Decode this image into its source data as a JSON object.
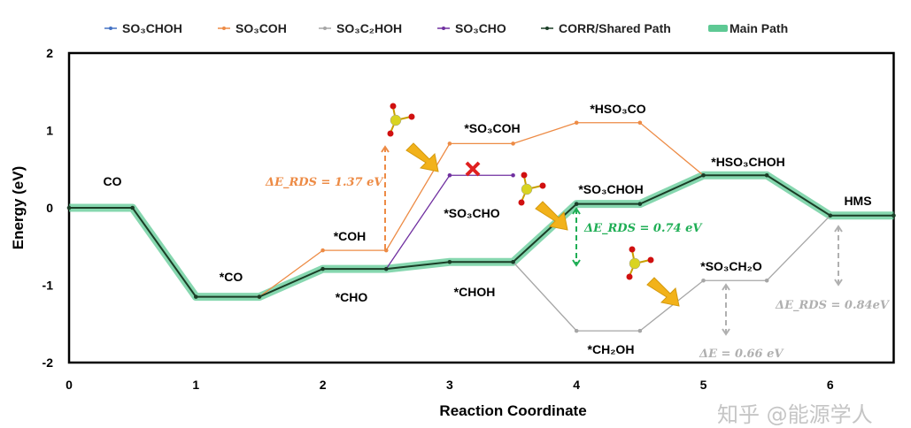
{
  "chart_data": {
    "type": "line",
    "title": "",
    "xlabel": "Reaction Coordinate",
    "ylabel": "Energy (eV)",
    "xlim": [
      0,
      6.5
    ],
    "ylim": [
      -2,
      2
    ],
    "x_ticks": [
      "0",
      "1",
      "2",
      "3",
      "4",
      "5",
      "6"
    ],
    "y_ticks": [
      "2",
      "1",
      "0",
      "-1",
      "-2"
    ],
    "grid": false,
    "legend_position": "top",
    "legend": [
      "SO₃CHOH",
      "SO₃COH",
      "SO₃C₂HOH",
      "SO₃CHO",
      "CORR/Shared Path",
      "Main Path"
    ],
    "series": [
      {
        "name": "Main Path",
        "color": "#5ec994",
        "points": [
          [
            0,
            0
          ],
          [
            0.5,
            0
          ],
          [
            1,
            -1.15
          ],
          [
            1.5,
            -1.15
          ],
          [
            2,
            -0.79
          ],
          [
            2.5,
            -0.79
          ],
          [
            3,
            -0.7
          ],
          [
            3.5,
            -0.7
          ],
          [
            4,
            0.05
          ],
          [
            4.5,
            0.05
          ],
          [
            5,
            0.42
          ],
          [
            5.5,
            0.42
          ],
          [
            6,
            -0.1
          ],
          [
            6.5,
            -0.1
          ]
        ]
      },
      {
        "name": "SO₃COH",
        "color": "#ed8b45",
        "points": [
          [
            1.5,
            -1.15
          ],
          [
            2,
            -0.55
          ],
          [
            2.5,
            -0.55
          ],
          [
            3,
            0.83
          ],
          [
            3.5,
            0.83
          ],
          [
            4,
            1.1
          ],
          [
            4.5,
            1.1
          ],
          [
            5,
            0.42
          ]
        ]
      },
      {
        "name": "SO₃C₂HOH",
        "color": "#a6a6a6",
        "points": [
          [
            3.5,
            -0.7
          ],
          [
            4,
            -1.59
          ],
          [
            4.5,
            -1.59
          ],
          [
            5,
            -0.94
          ],
          [
            5.5,
            -0.94
          ],
          [
            6,
            -0.1
          ]
        ]
      },
      {
        "name": "SO₃CHO",
        "color": "#7030a0",
        "points": [
          [
            2.5,
            -0.79
          ],
          [
            3,
            0.42
          ],
          [
            3.5,
            0.42
          ]
        ]
      },
      {
        "name": "SO₃CHOH",
        "color": "#4472c4",
        "points": [
          [
            3.5,
            -0.7
          ],
          [
            4,
            0.05
          ],
          [
            4.5,
            0.05
          ],
          [
            5,
            0.42
          ]
        ]
      },
      {
        "name": "CORR/Shared Path",
        "color": "#1a3d26",
        "points": [
          [
            0,
            0
          ],
          [
            0.5,
            0
          ],
          [
            1,
            -1.15
          ],
          [
            1.5,
            -1.15
          ],
          [
            2,
            -0.79
          ],
          [
            2.5,
            -0.79
          ],
          [
            3,
            -0.7
          ],
          [
            3.5,
            -0.7
          ],
          [
            4,
            0.05
          ],
          [
            4.5,
            0.05
          ],
          [
            5,
            0.42
          ],
          [
            5.5,
            0.42
          ],
          [
            6,
            -0.1
          ],
          [
            6.5,
            -0.1
          ]
        ]
      }
    ],
    "state_labels": [
      "CO",
      "*CO",
      "*CHO",
      "*COH",
      "*SO₃COH",
      "*SO₃CHO",
      "*CHOH",
      "*HSO₃CO",
      "*SO₃CHOH",
      "*CH₂OH",
      "*HSO₃CHOH",
      "*SO₃CH₂O",
      "HMS"
    ],
    "annotations": [
      {
        "text": "ΔE_RDS = 1.37 eV",
        "color": "#ed8b45"
      },
      {
        "text": "ΔE_RDS = 0.74 eV",
        "color": "#1fae55"
      },
      {
        "text": "ΔE = 0.66 eV",
        "color": "#b0b0b0"
      },
      {
        "text": "ΔE_RDS = 0.84eV",
        "color": "#b0b0b0"
      }
    ],
    "blocked_marker": "x-icon"
  },
  "watermark": "知乎 @能源学人"
}
